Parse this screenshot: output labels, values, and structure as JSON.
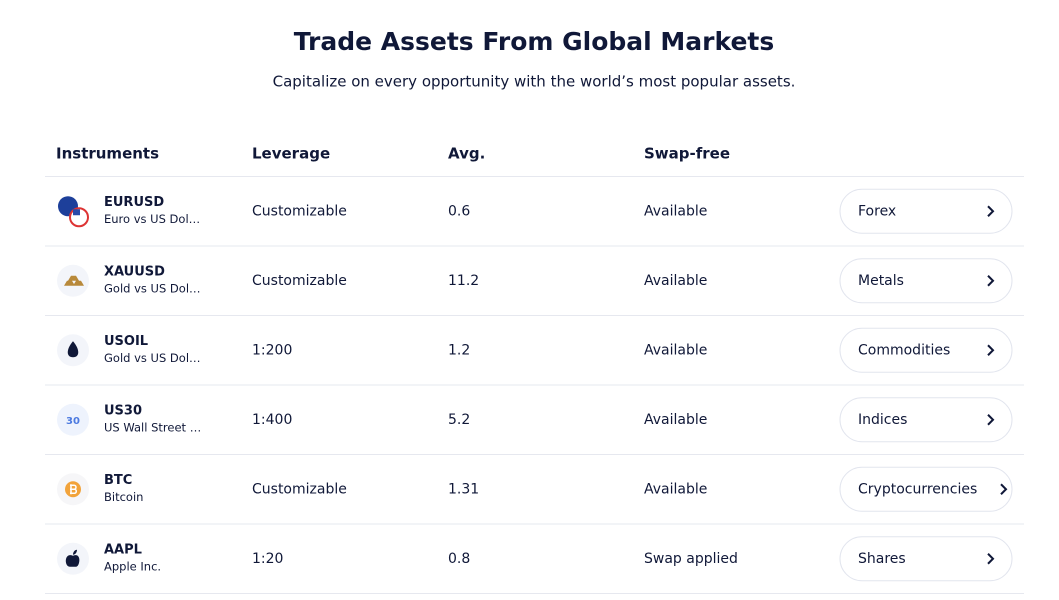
{
  "header": {
    "title": "Trade Assets From Global Markets",
    "subtitle": "Capitalize on every opportunity with the world’s most popular assets."
  },
  "table": {
    "columns": [
      "Instruments",
      "Leverage",
      "Avg.",
      "Swap-free"
    ],
    "rows": [
      {
        "symbol": "EURUSD",
        "name": "Euro vs US Dol…",
        "leverage": "Customizable",
        "avg": "0.6",
        "swap": "Available",
        "category": "Forex"
      },
      {
        "symbol": "XAUUSD",
        "name": "Gold vs US Dol…",
        "leverage": "Customizable",
        "avg": "11.2",
        "swap": "Available",
        "category": "Metals"
      },
      {
        "symbol": "USOIL",
        "name": "Gold vs US Dol…",
        "leverage": "1:200",
        "avg": "1.2",
        "swap": "Available",
        "category": "Commodities"
      },
      {
        "symbol": "US30",
        "icon_text": "30",
        "name": "US Wall Street …",
        "leverage": "1:400",
        "avg": "5.2",
        "swap": "Available",
        "category": "Indices"
      },
      {
        "symbol": "BTC",
        "name": "Bitcoin",
        "leverage": "Customizable",
        "avg": "1.31",
        "swap": "Available",
        "category": "Cryptocurrencies"
      },
      {
        "symbol": "AAPL",
        "name": "Apple Inc.",
        "leverage": "1:20",
        "avg": "0.8",
        "swap": "Swap applied",
        "category": "Shares"
      }
    ]
  }
}
